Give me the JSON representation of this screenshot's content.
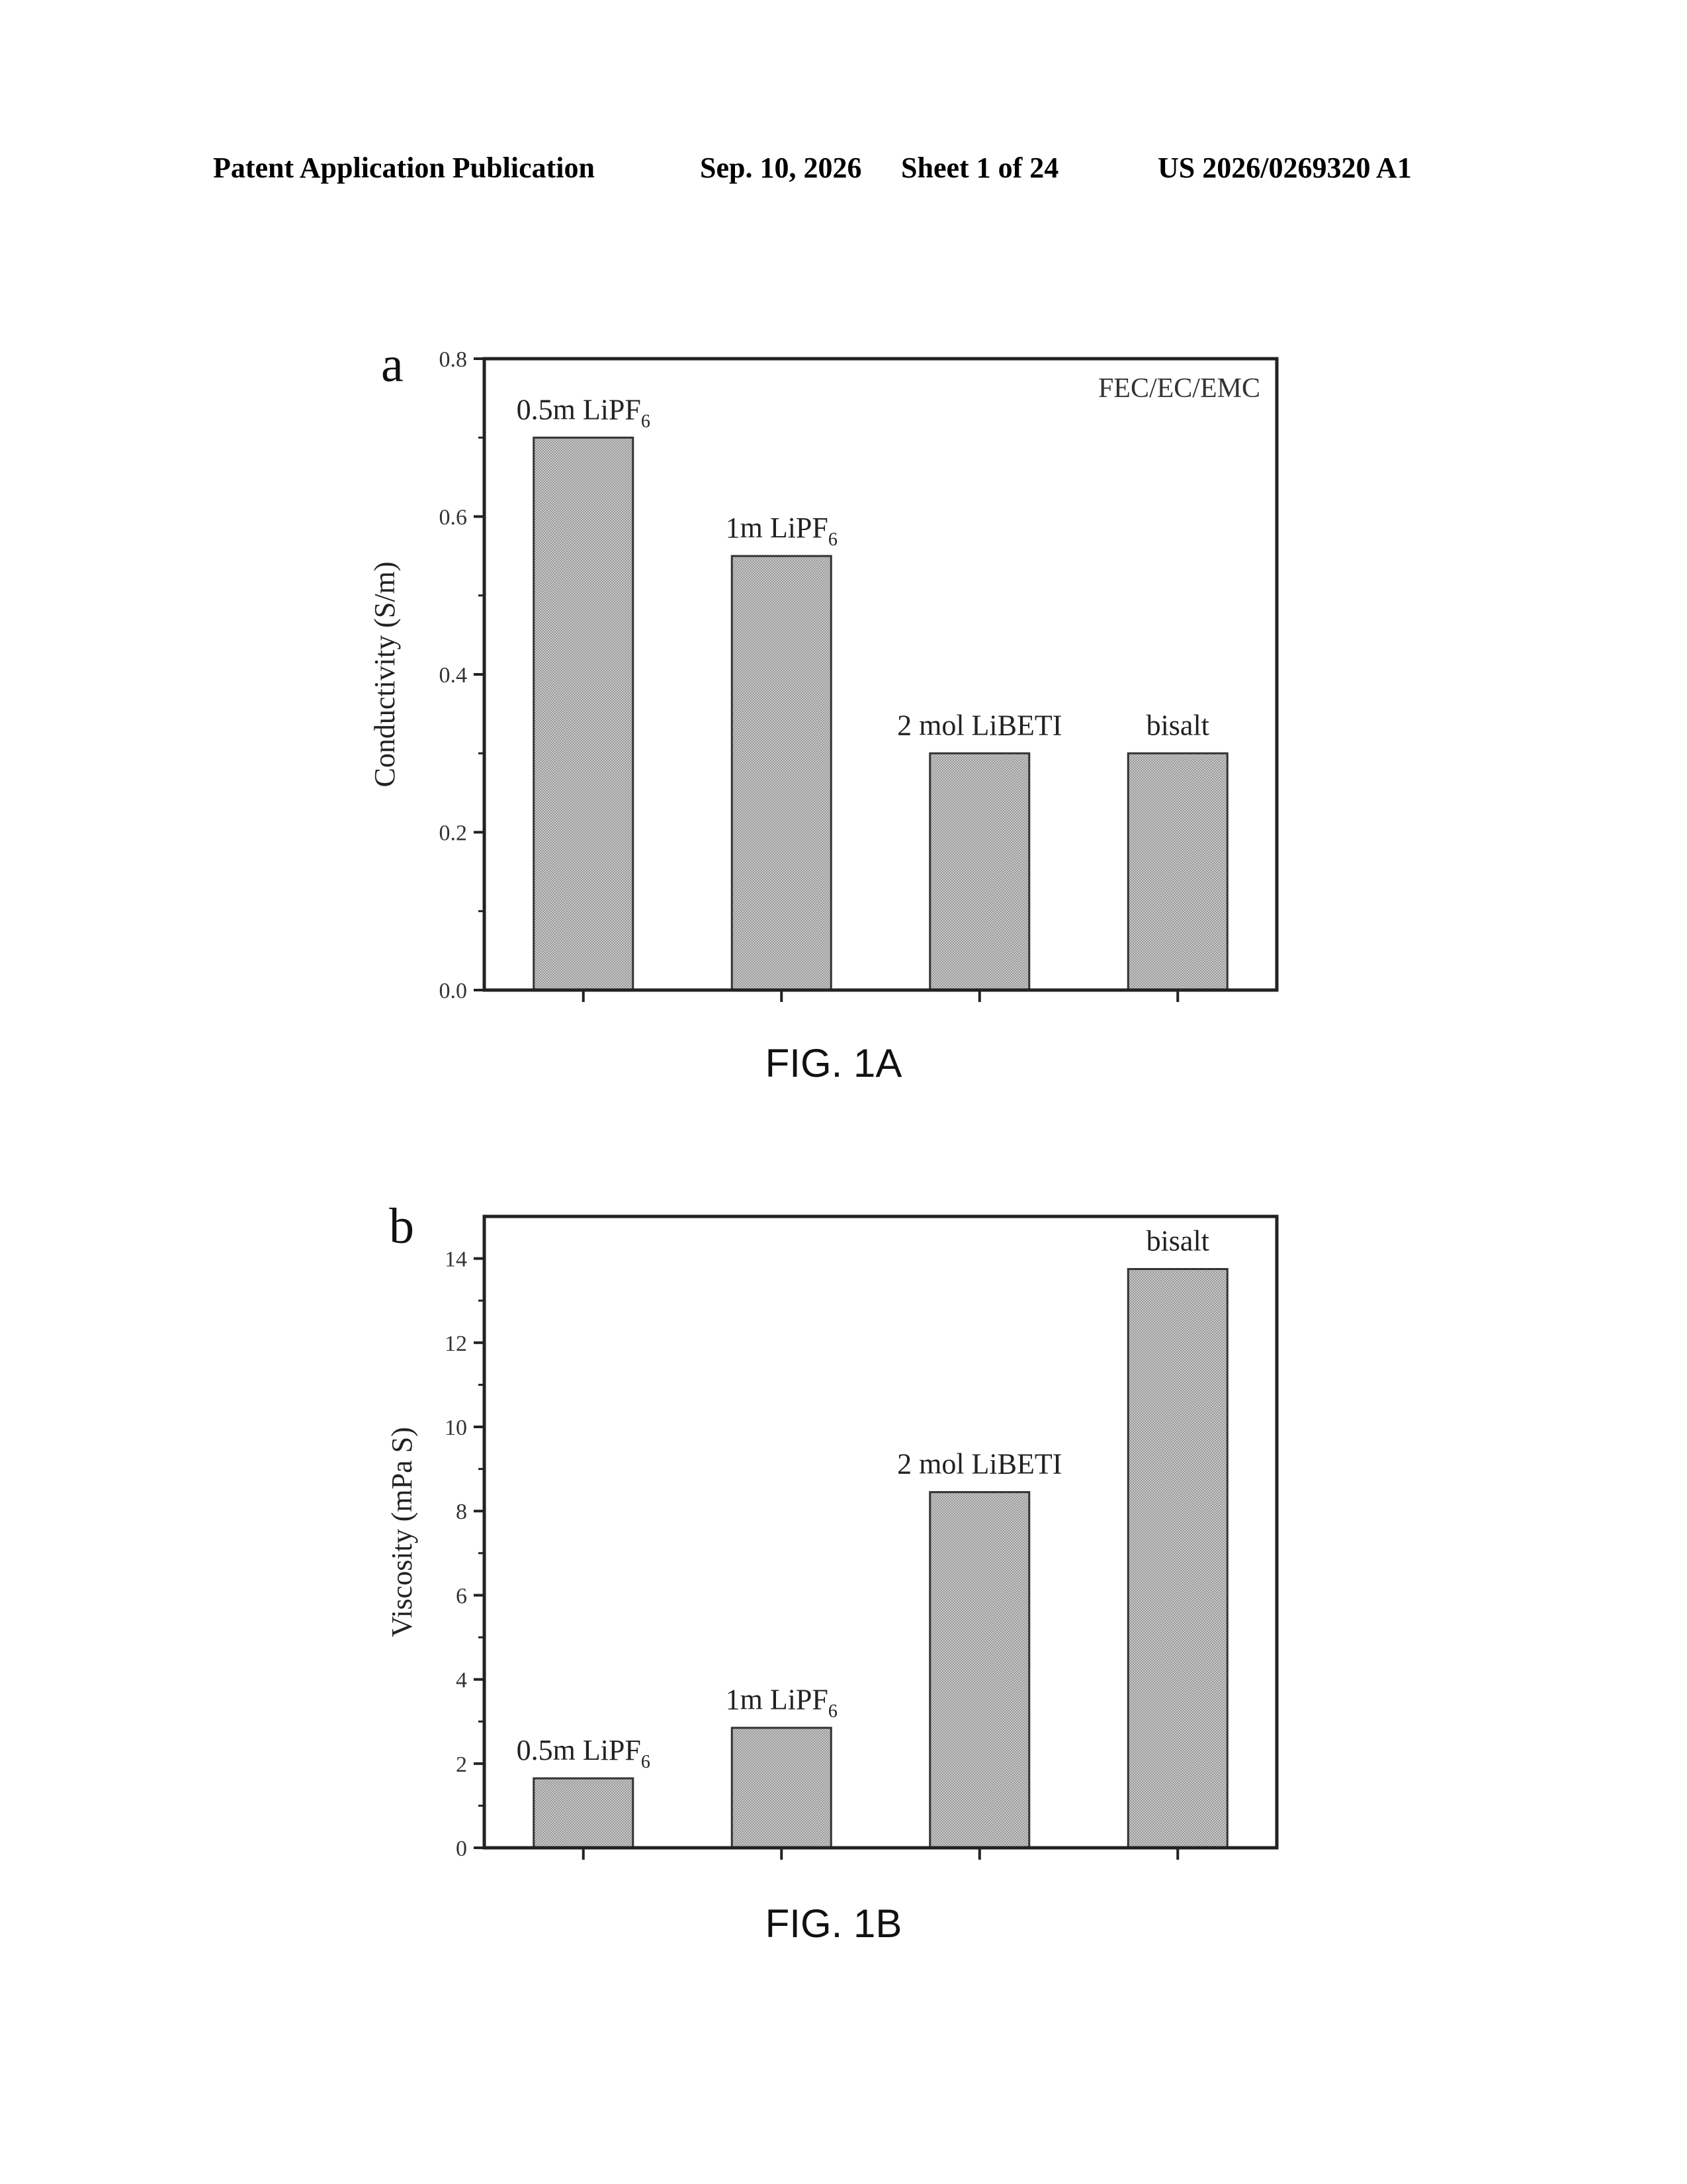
{
  "header": {
    "publication": "Patent Application Publication",
    "date": "Sep. 10, 2026",
    "sheet": "Sheet 1 of 24",
    "number": "US 2026/0269320 A1"
  },
  "chart_data": [
    {
      "type": "bar",
      "panel_label": "a",
      "caption": "FIG. 1A",
      "annotation": "FEC/EC/EMC",
      "ylabel": "Conductivity (S/m)",
      "xlabel": "",
      "ylim": [
        0,
        0.8
      ],
      "yticks": [
        "0.0",
        "0.2",
        "0.4",
        "0.6",
        "0.8"
      ],
      "categories": [
        {
          "base": "0.5m LiPF",
          "sub": "6"
        },
        {
          "base": "1m LiPF",
          "sub": "6"
        },
        {
          "base": "2 mol LiBETI",
          "sub": ""
        },
        {
          "base": "bisalt",
          "sub": ""
        }
      ],
      "values": [
        0.7,
        0.55,
        0.3,
        0.3
      ],
      "bar_color": "#c8c8c8"
    },
    {
      "type": "bar",
      "panel_label": "b",
      "caption": "FIG. 1B",
      "annotation": "",
      "ylabel": "Viscosity (mPa S)",
      "xlabel": "",
      "ylim": [
        0,
        15
      ],
      "yticks": [
        "0",
        "2",
        "4",
        "6",
        "8",
        "10",
        "12",
        "14"
      ],
      "categories": [
        {
          "base": "0.5m LiPF",
          "sub": "6"
        },
        {
          "base": "1m LiPF",
          "sub": "6"
        },
        {
          "base": "2 mol LiBETI",
          "sub": ""
        },
        {
          "base": "bisalt",
          "sub": ""
        }
      ],
      "values": [
        1.65,
        2.85,
        8.45,
        13.75
      ],
      "bar_color": "#c8c8c8"
    }
  ]
}
